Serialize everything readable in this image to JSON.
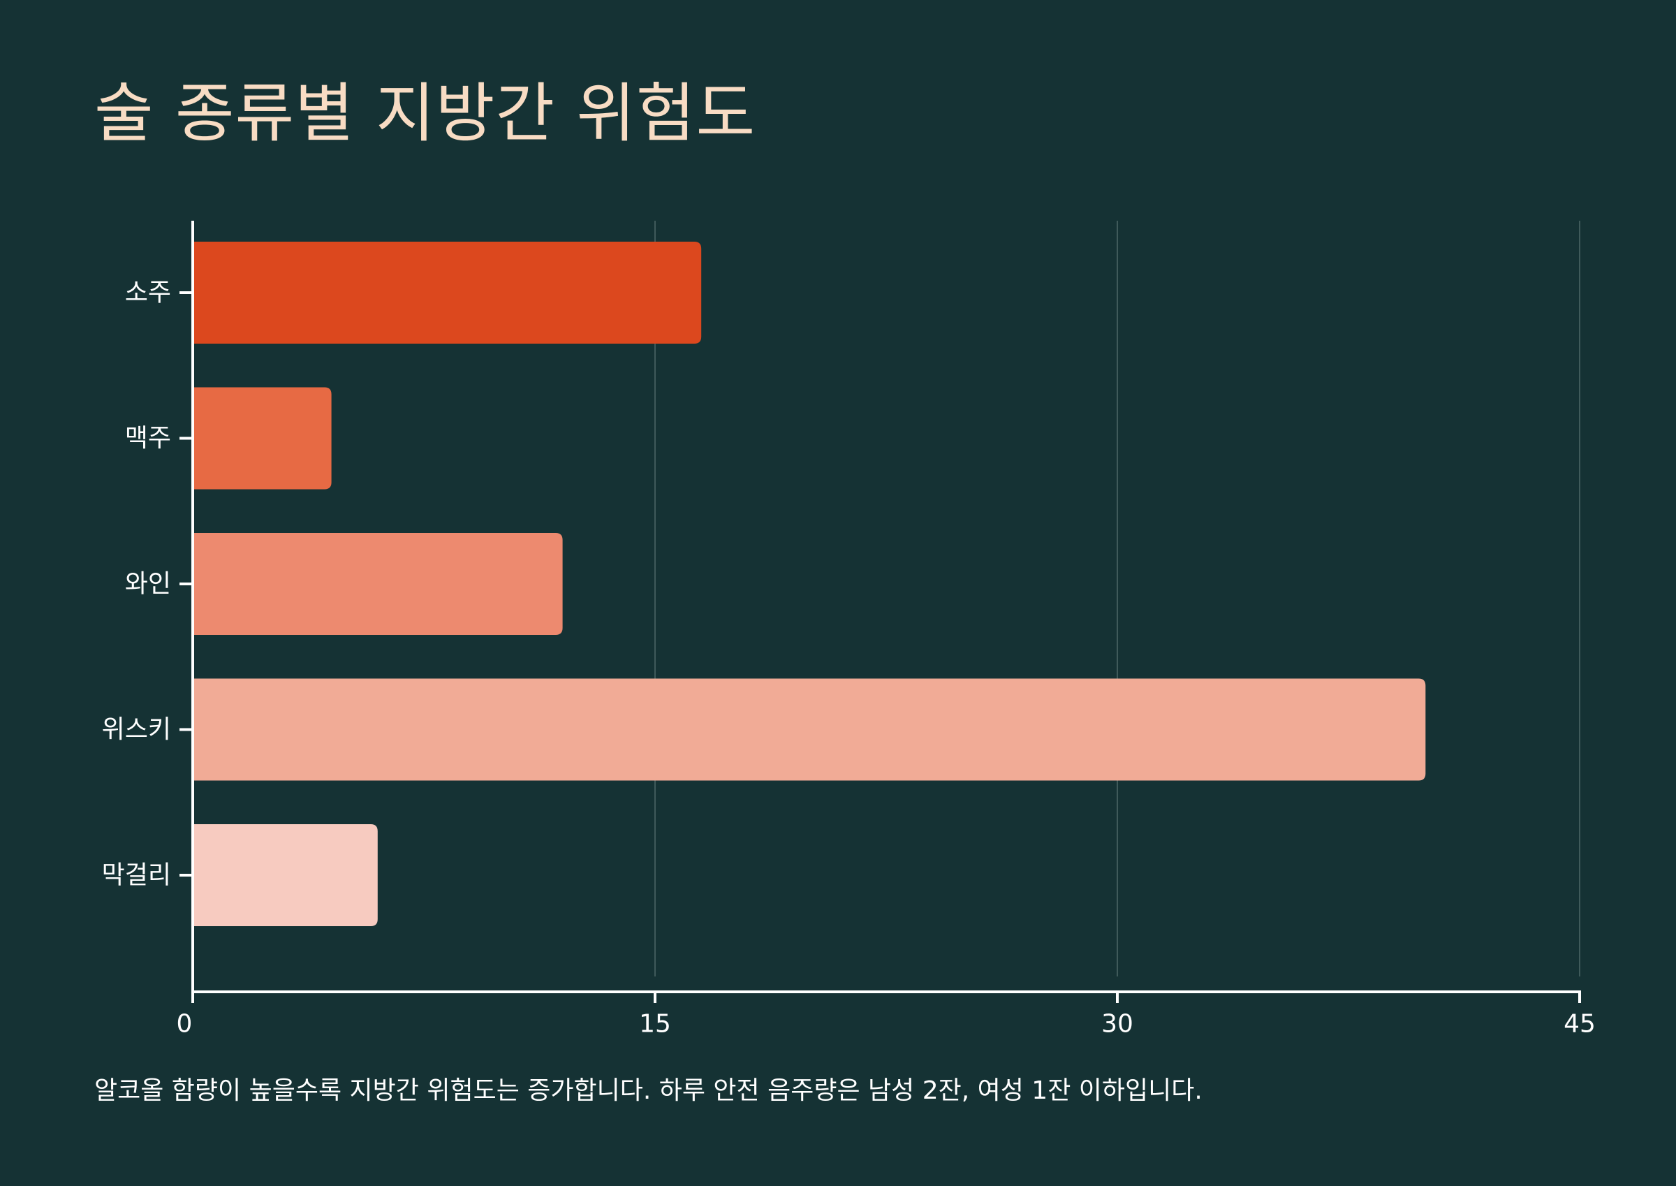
{
  "title": "술 종류별 지방간 위험도",
  "footnote": "알코올 함량이 높을수록 지방간 위험도는 증가합니다. 하루 안전 음주량은 남성 2잔, 여성 1잔 이하입니다.",
  "colors": {
    "background": "#153234",
    "title": "#f8dcc4",
    "axis": "#ffffff",
    "grid": "#3f5a5a",
    "text": "#ffffff"
  },
  "chart_data": {
    "type": "bar",
    "orientation": "horizontal",
    "categories": [
      "소주",
      "맥주",
      "와인",
      "위스키",
      "막걸리"
    ],
    "values": [
      16.5,
      4.5,
      12,
      40,
      6
    ],
    "bar_colors": [
      "#dc481e",
      "#e76a44",
      "#ed8a6f",
      "#f1ab96",
      "#f7cbc0"
    ],
    "xlim": [
      0,
      45
    ],
    "xticks": [
      0,
      15,
      30,
      45
    ],
    "xtick_labels": [
      "0",
      "15",
      "30",
      "45"
    ],
    "grid": "vertical",
    "title": "술 종류별 지방간 위험도",
    "xlabel": "",
    "ylabel": ""
  }
}
